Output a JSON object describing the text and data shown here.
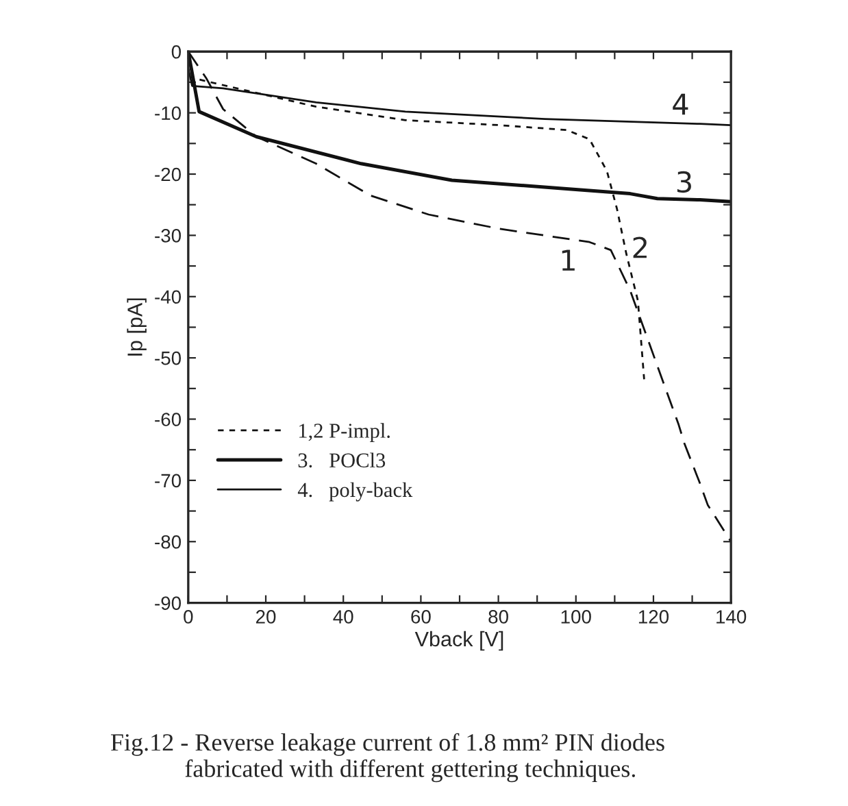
{
  "chart_data": {
    "type": "line",
    "xlabel": "Vback [V]",
    "ylabel": "Ip [pA]",
    "series": [
      {
        "color": "#111111",
        "line_style": "dashed",
        "x": [
          0,
          4.6,
          9,
          17.6,
          33,
          47,
          62,
          80,
          103.5,
          109,
          114,
          123,
          126.5,
          128,
          132,
          134,
          140
        ],
        "values": [
          0,
          -4.3,
          -9.4,
          -13.9,
          -18.3,
          -23.5,
          -26.6,
          -28.9,
          -31.1,
          -32.4,
          -39,
          -54.8,
          -60.9,
          -64,
          -70.5,
          -74,
          -80
        ]
      },
      {
        "name": "1,2 P-impl.",
        "color": "#111111",
        "line_style": "dotted",
        "x": [
          0,
          1,
          33,
          56,
          80,
          97.6,
          103.5,
          108,
          110.6,
          113,
          116,
          117.6
        ],
        "values": [
          0,
          -4.3,
          -9,
          -11.2,
          -12,
          -12.8,
          -14.3,
          -19.5,
          -25.7,
          -33,
          -40.7,
          -53.5
        ]
      },
      {
        "name": "3.   POCl3",
        "color": "#111111",
        "line_style": "solid",
        "x": [
          0,
          2.8,
          17.6,
          44.6,
          68,
          97.6,
          114,
          121,
          132,
          140
        ],
        "values": [
          0,
          -9.8,
          -13.9,
          -18.3,
          -21,
          -22.4,
          -23.2,
          -24,
          -24.2,
          -24.5
        ]
      },
      {
        "name": "4.   poly-back",
        "color": "#111111",
        "line_style": "solid",
        "x": [
          0,
          1,
          9,
          33,
          56,
          92,
          132,
          140
        ],
        "values": [
          -2.7,
          -5.6,
          -6,
          -8.3,
          -9.8,
          -11,
          -11.8,
          -12
        ]
      }
    ],
    "xlim": [
      0,
      140
    ],
    "ylim": [
      -90,
      0
    ],
    "xticks": [
      0,
      {
        "value": 10,
        "label": null
      },
      20,
      {
        "value": 30,
        "label": null
      },
      40,
      {
        "value": 50,
        "label": null
      },
      60,
      {
        "value": 70,
        "label": null
      },
      80,
      {
        "value": 90,
        "label": null
      },
      100,
      {
        "value": 110,
        "label": null
      },
      120,
      {
        "value": 130,
        "label": null
      },
      140
    ],
    "yticks": [
      -90,
      {
        "value": -85,
        "label": null
      },
      -80,
      {
        "value": -75,
        "label": null
      },
      -70,
      {
        "value": -65,
        "label": null
      },
      -60,
      {
        "value": -55,
        "label": null
      },
      -50,
      {
        "value": -45,
        "label": null
      },
      -40,
      {
        "value": -35,
        "label": null
      },
      -30,
      {
        "value": -25,
        "label": null
      },
      -20,
      {
        "value": -15,
        "label": null
      },
      -10,
      {
        "value": -5,
        "label": null
      },
      0
    ],
    "legend": "lower left",
    "grid": false,
    "annotations": [
      "1",
      "2",
      "3",
      "4",
      "Fig.12 - Reverse leakage current of 1.8 mm² PIN diodes\n            fabricated with different gettering techniques."
    ]
  }
}
